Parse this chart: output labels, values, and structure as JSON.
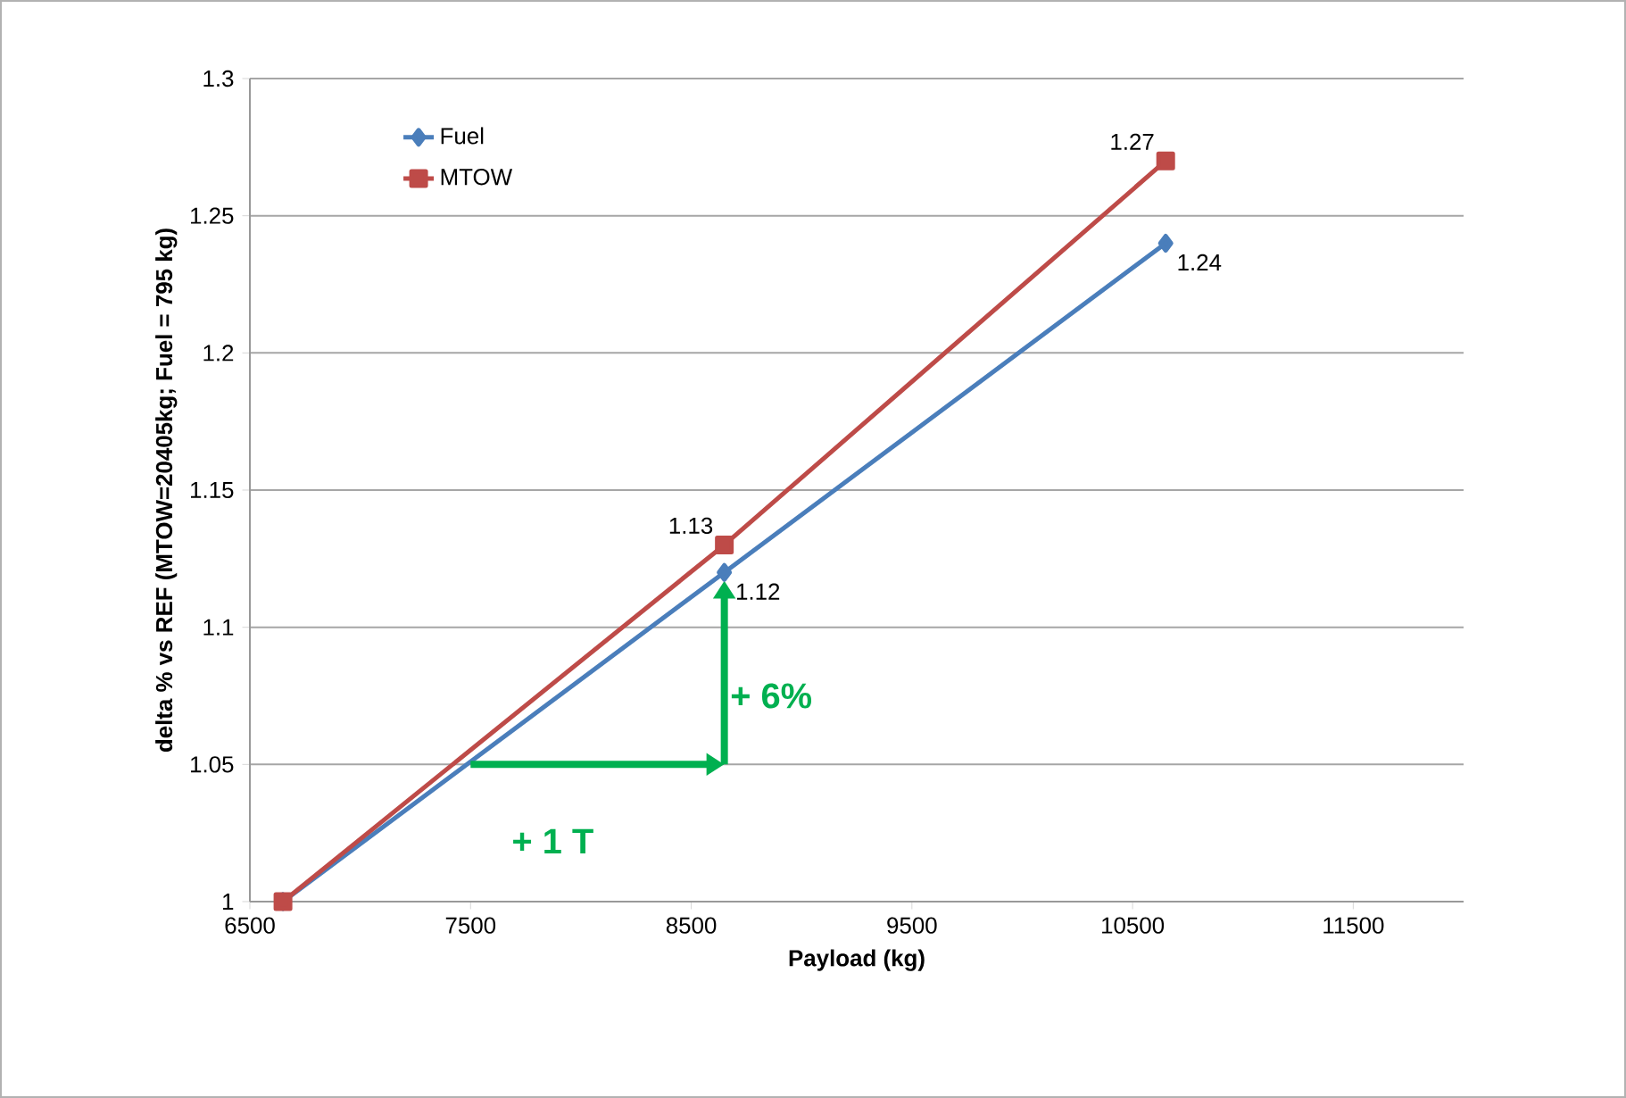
{
  "chart_data": {
    "type": "line",
    "xlabel": "Payload (kg)",
    "ylabel": "delta % vs REF (MTOW=20405kg; Fuel = 795 kg)",
    "xlim": [
      6500,
      12000
    ],
    "xticks": [
      6500,
      7500,
      8500,
      9500,
      10500,
      11500
    ],
    "ylim": [
      1,
      1.3
    ],
    "yticks": [
      1,
      1.05,
      1.1,
      1.15,
      1.2,
      1.25,
      1.3
    ],
    "grid": "y",
    "legend": "top left",
    "line_style": "solid",
    "series": [
      {
        "name": "Fuel",
        "color": "#4a7ebb",
        "marker": "diamond",
        "x": [
          6650,
          8650,
          10650
        ],
        "values": [
          1.0,
          1.12,
          1.24
        ],
        "value_labels": [
          null,
          "1.12",
          "1.24"
        ]
      },
      {
        "name": "MTOW",
        "color": "#be4b48",
        "marker": "square",
        "x": [
          6650,
          8650,
          10650
        ],
        "values": [
          1.0,
          1.13,
          1.27
        ],
        "value_labels": [
          null,
          "1.13",
          "1.27"
        ]
      }
    ],
    "annotations": [
      "+ 6%",
      "+ 1 T"
    ]
  }
}
